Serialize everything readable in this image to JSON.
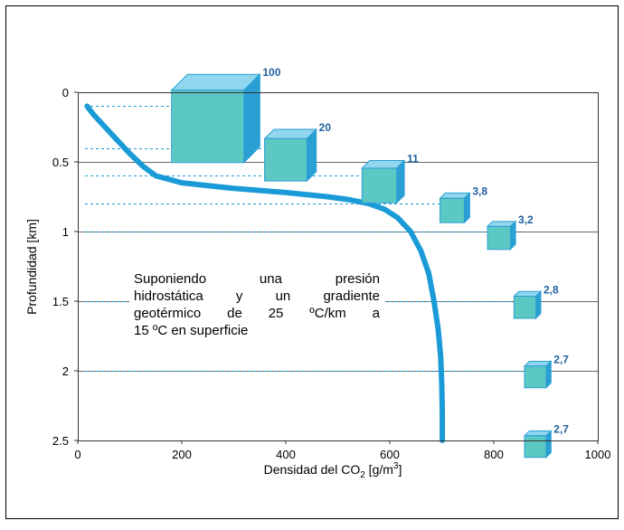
{
  "chart_data": {
    "type": "line",
    "xlabel": "Densidad del CO",
    "xlabel_sub": "2",
    "xlabel_unit_pre": " [g/m",
    "xlabel_unit_sup": "3",
    "xlabel_unit_post": "]",
    "ylabel": "Profundidad [km]",
    "xlim": [
      0,
      1000
    ],
    "ylim": [
      0,
      2.5
    ],
    "y_inverted": true,
    "x_ticks": [
      "0",
      "200",
      "400",
      "600",
      "800",
      "1000"
    ],
    "y_ticks": [
      "0",
      "0.5",
      "1",
      "1.5",
      "2",
      "2.5"
    ],
    "grid": "horizontal",
    "series": [
      {
        "color": "#1a9bd7",
        "x": [
          18,
          30,
          50,
          75,
          100,
          125,
          150,
          200,
          300,
          400,
          480,
          520,
          560,
          590,
          615,
          640,
          660,
          675,
          685,
          693,
          698,
          700,
          701,
          701
        ],
        "y": [
          0.1,
          0.16,
          0.24,
          0.34,
          0.44,
          0.53,
          0.6,
          0.65,
          0.69,
          0.72,
          0.75,
          0.77,
          0.8,
          0.84,
          0.9,
          1.0,
          1.14,
          1.3,
          1.5,
          1.7,
          1.9,
          2.1,
          2.3,
          2.5
        ]
      }
    ],
    "cubes": [
      {
        "label": "100",
        "depth": 0.1,
        "density": 250
      },
      {
        "label": "20",
        "depth": 0.4,
        "density": 400
      },
      {
        "label": "11",
        "depth": 0.6,
        "density": 580
      },
      {
        "label": "3,8",
        "depth": 0.8,
        "density": 720
      },
      {
        "label": "3,2",
        "depth": 1.0,
        "density": 810
      },
      {
        "label": "2,8",
        "depth": 1.5,
        "density": 860
      },
      {
        "label": "2,7",
        "depth": 2.0,
        "density": 880
      },
      {
        "label": "2,7",
        "depth": 2.5,
        "density": 880
      }
    ],
    "annotation": [
      "Suponiendo una presión",
      "hidrostática y un gradiente",
      "geotérmico de 25 ºC/km a",
      "15 ºC en superficie"
    ],
    "colors": {
      "curve": "#1a9bd7",
      "cube_front": "#5cc8c4",
      "cube_top": "#8fd6ee",
      "cube_side": "#2a9fd4",
      "depth_lines": "#1a9bd7",
      "grid": "#666666"
    }
  }
}
